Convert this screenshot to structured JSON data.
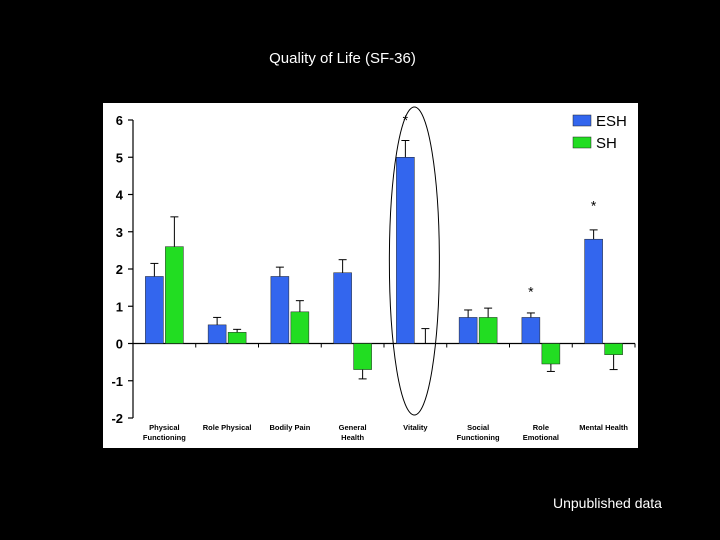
{
  "slide": {
    "title": "Quality of Life (SF-36)",
    "footnote": "Unpublished data"
  },
  "colors": {
    "esh": "#3366ee",
    "sh": "#22dd22",
    "background": "#000000",
    "plot_background": "#ffffff"
  },
  "chart_data": {
    "type": "bar",
    "title": "Quality of Life (SF-36)",
    "xlabel": "",
    "ylabel": "",
    "ylim": [
      -2,
      6
    ],
    "yticks": [
      6,
      5,
      4,
      3,
      2,
      1,
      0,
      -1,
      -2
    ],
    "grid": false,
    "legend": "top-right",
    "categories": [
      [
        "Physical",
        "Functioning"
      ],
      [
        "Role Physical"
      ],
      [
        "Bodily Pain"
      ],
      [
        "General",
        "Health"
      ],
      [
        "Vitality"
      ],
      [
        "Social",
        "Functioning"
      ],
      [
        "Role",
        "Emotional"
      ],
      [
        "Mental Health"
      ]
    ],
    "series": [
      {
        "name": "ESH",
        "values": [
          1.8,
          0.5,
          1.8,
          1.9,
          5.0,
          0.7,
          0.7,
          2.8
        ],
        "errors": [
          0.35,
          0.2,
          0.25,
          0.35,
          0.45,
          0.2,
          0.12,
          0.25
        ]
      },
      {
        "name": "SH",
        "values": [
          2.6,
          0.3,
          0.85,
          -0.7,
          0.0,
          0.7,
          -0.55,
          -0.3
        ],
        "errors": [
          0.8,
          0.08,
          0.3,
          0.25,
          0.4,
          0.25,
          0.2,
          0.4
        ]
      }
    ],
    "annotations": [
      {
        "category_index": 4,
        "text": "*",
        "y": 6.0,
        "circled": true
      },
      {
        "category_index": 7,
        "text": "*",
        "y": 3.7
      },
      {
        "category_index": 6,
        "text": "*",
        "y": 1.4
      }
    ]
  }
}
